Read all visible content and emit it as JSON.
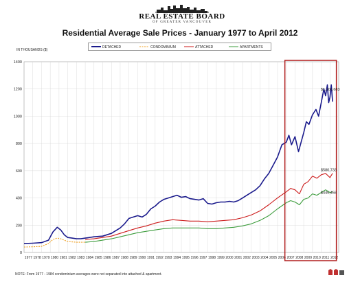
{
  "header": {
    "logo_name": "REAL ESTATE BOARD",
    "logo_sub": "OF GREATER VANCOUVER"
  },
  "chart_data": {
    "type": "line",
    "title": "Residential Average Sale Prices  -  January 1977 to April 2012",
    "ylabel": "IN THOUSANDS ($)",
    "ylim": [
      0,
      1400
    ],
    "yticks": [
      0,
      200,
      400,
      600,
      800,
      1000,
      1200,
      1400
    ],
    "x_categories": [
      "1977",
      "1978",
      "1979",
      "1980",
      "1981",
      "1982",
      "1983",
      "1984",
      "1985",
      "1986",
      "1987",
      "1988",
      "1989",
      "1990",
      "1991",
      "1992",
      "1993",
      "1994",
      "1995",
      "1996",
      "1997",
      "1998",
      "1999",
      "2000",
      "2001",
      "2002",
      "2003",
      "2004",
      "2005",
      "2006",
      "2007",
      "2008",
      "2009",
      "2010",
      "2011",
      "2012"
    ],
    "grid": true,
    "legend_position": "top",
    "series": [
      {
        "name": "DETACHED",
        "color": "#1a1a8c",
        "style": "solid",
        "x": [
          1977.0,
          1978.0,
          1979.0,
          1979.8,
          1980.3,
          1980.8,
          1981.2,
          1981.6,
          1982.0,
          1982.5,
          1983.0,
          1983.5,
          1984.0,
          1985.0,
          1986.0,
          1987.0,
          1988.0,
          1988.5,
          1989.0,
          1989.5,
          1990.0,
          1990.5,
          1991.0,
          1991.5,
          1992.0,
          1992.5,
          1993.0,
          1993.5,
          1994.0,
          1994.5,
          1995.0,
          1995.5,
          1996.0,
          1996.5,
          1997.0,
          1997.5,
          1998.0,
          1998.5,
          1999.0,
          1999.5,
          2000.0,
          2000.5,
          2001.0,
          2001.5,
          2002.0,
          2002.5,
          2003.0,
          2003.5,
          2004.0,
          2004.5,
          2005.0,
          2005.5,
          2006.0,
          2006.5,
          2007.0,
          2007.3,
          2007.6,
          2008.0,
          2008.4,
          2008.7,
          2009.0,
          2009.3,
          2009.6,
          2010.0,
          2010.4,
          2010.7,
          2011.0,
          2011.3,
          2011.5,
          2011.7,
          2011.85,
          2012.0,
          2012.15,
          2012.3
        ],
        "y": [
          65,
          68,
          72,
          90,
          150,
          185,
          165,
          130,
          110,
          105,
          100,
          100,
          105,
          115,
          120,
          140,
          180,
          210,
          250,
          260,
          270,
          260,
          280,
          320,
          340,
          370,
          390,
          400,
          410,
          420,
          405,
          410,
          395,
          390,
          385,
          395,
          360,
          355,
          365,
          370,
          370,
          375,
          370,
          380,
          400,
          420,
          440,
          460,
          490,
          540,
          580,
          640,
          700,
          790,
          810,
          860,
          790,
          850,
          740,
          810,
          880,
          960,
          940,
          1010,
          1050,
          1000,
          1100,
          1200,
          1150,
          1230,
          1100,
          1140,
          1230,
          1107
        ]
      },
      {
        "name": "CONDOMINIUM",
        "color": "#f0a020",
        "style": "dashed",
        "x": [
          1977.0,
          1978.0,
          1979.0,
          1979.8,
          1980.3,
          1980.8,
          1981.2,
          1981.6,
          1982.0,
          1983.0,
          1984.0
        ],
        "y": [
          40,
          42,
          45,
          65,
          95,
          105,
          100,
          90,
          80,
          75,
          75
        ]
      },
      {
        "name": "ATTACHED",
        "color": "#cc1a1a",
        "style": "solid",
        "x": [
          1984.0,
          1985.0,
          1986.0,
          1987.0,
          1988.0,
          1989.0,
          1990.0,
          1991.0,
          1992.0,
          1993.0,
          1994.0,
          1995.0,
          1996.0,
          1997.0,
          1998.0,
          1999.0,
          2000.0,
          2001.0,
          2002.0,
          2003.0,
          2004.0,
          2005.0,
          2006.0,
          2007.0,
          2007.5,
          2008.0,
          2008.5,
          2009.0,
          2009.5,
          2010.0,
          2010.5,
          2011.0,
          2011.5,
          2012.0,
          2012.3
        ],
        "y": [
          95,
          100,
          110,
          120,
          140,
          160,
          180,
          195,
          215,
          230,
          240,
          235,
          230,
          230,
          225,
          230,
          235,
          240,
          255,
          275,
          305,
          350,
          400,
          445,
          470,
          460,
          430,
          500,
          520,
          560,
          545,
          570,
          580,
          550,
          581
        ]
      },
      {
        "name": "APARTMENTS",
        "color": "#3c9c3c",
        "style": "solid",
        "x": [
          1984.0,
          1985.0,
          1986.0,
          1987.0,
          1988.0,
          1989.0,
          1990.0,
          1991.0,
          1992.0,
          1993.0,
          1994.0,
          1995.0,
          1996.0,
          1997.0,
          1998.0,
          1999.0,
          2000.0,
          2001.0,
          2002.0,
          2003.0,
          2004.0,
          2005.0,
          2006.0,
          2007.0,
          2007.5,
          2008.0,
          2008.5,
          2009.0,
          2009.5,
          2010.0,
          2010.5,
          2011.0,
          2011.5,
          2012.0,
          2012.3
        ],
        "y": [
          75,
          80,
          90,
          100,
          115,
          130,
          145,
          155,
          165,
          175,
          180,
          180,
          180,
          180,
          175,
          175,
          180,
          185,
          195,
          210,
          235,
          270,
          320,
          365,
          380,
          370,
          350,
          390,
          400,
          430,
          420,
          440,
          460,
          440,
          445
        ]
      }
    ],
    "annotations": [
      "$1,106,683",
      "$580,733",
      "$445,458"
    ],
    "highlight": {
      "x_range": [
        2007.0,
        2012.5
      ],
      "color": "#b01c1c"
    }
  },
  "footnote": "NOTE:  From 1977 - 1984 condominium averages were not separated into attached & apartment."
}
